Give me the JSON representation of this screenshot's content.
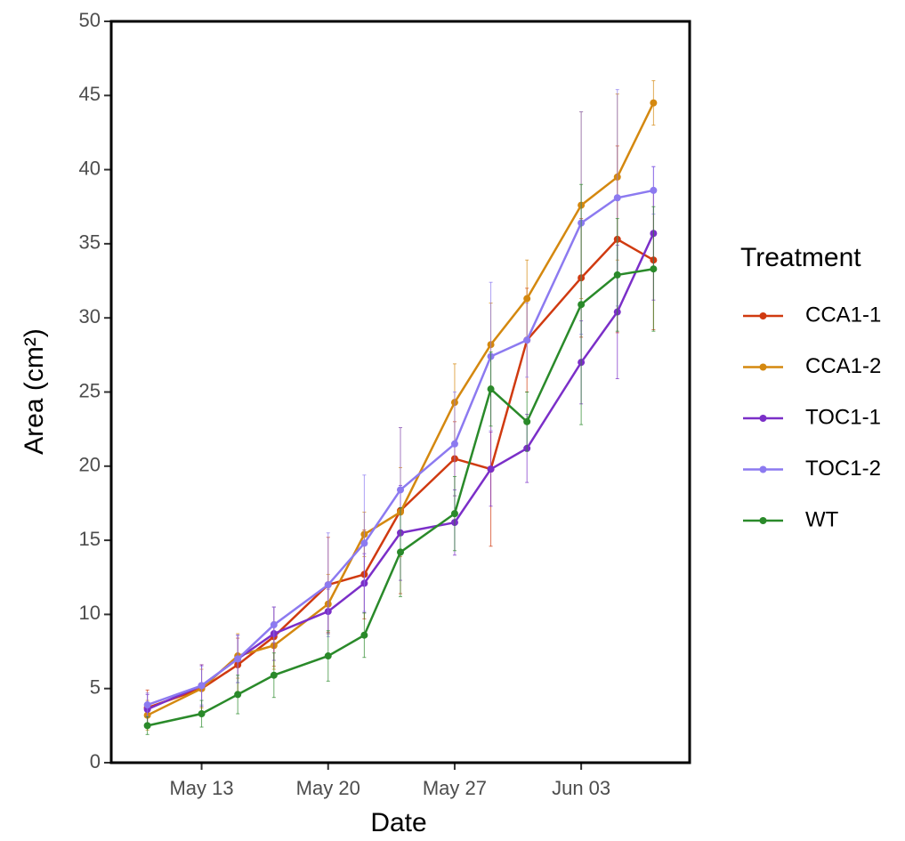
{
  "chart_data": {
    "type": "line",
    "x_label": "Date",
    "y_label": "Area (cm²)",
    "legend_title": "Treatment",
    "legend_position": "right",
    "x": [
      "05-10",
      "05-13",
      "05-15",
      "05-17",
      "05-20",
      "05-22",
      "05-24",
      "05-27",
      "05-29",
      "05-31",
      "06-03",
      "06-05",
      "06-07"
    ],
    "xlim": [
      "05-08",
      "06-09"
    ],
    "xticks": [
      {
        "value": "05-13",
        "label": "May 13"
      },
      {
        "value": "05-20",
        "label": "May 20"
      },
      {
        "value": "05-27",
        "label": "May 27"
      },
      {
        "value": "06-03",
        "label": "Jun 03"
      }
    ],
    "ylim": [
      0,
      50
    ],
    "yticks": [
      0,
      5,
      10,
      15,
      20,
      25,
      30,
      35,
      40,
      45,
      50
    ],
    "series": [
      {
        "name": "CCA1-1",
        "color": "#d03a10",
        "values": [
          3.7,
          5.0,
          6.6,
          8.5,
          12.0,
          12.7,
          17.0,
          20.5,
          19.8,
          28.5,
          32.7,
          35.3,
          33.9
        ],
        "errors": [
          1.2,
          1.6,
          1.8,
          2.0,
          3.2,
          3.0,
          5.6,
          2.5,
          5.2,
          3.5,
          4.0,
          6.3,
          4.7
        ]
      },
      {
        "name": "CCA1-2",
        "color": "#d4880f",
        "values": [
          3.2,
          5.0,
          7.2,
          7.9,
          10.7,
          15.4,
          16.9,
          24.3,
          28.2,
          31.3,
          37.6,
          39.5,
          44.5
        ],
        "errors": [
          1.0,
          1.3,
          1.5,
          1.6,
          2.0,
          1.5,
          3.0,
          2.6,
          2.8,
          2.6,
          6.3,
          5.6,
          1.5
        ]
      },
      {
        "name": "TOC1-1",
        "color": "#7b2fc8",
        "values": [
          3.6,
          5.2,
          7.0,
          8.7,
          10.2,
          12.1,
          15.5,
          16.2,
          19.8,
          21.2,
          27.0,
          30.4,
          35.7
        ],
        "errors": [
          1.0,
          1.4,
          1.6,
          1.8,
          1.5,
          2.0,
          3.2,
          2.2,
          2.5,
          2.3,
          2.8,
          4.5,
          4.5
        ]
      },
      {
        "name": "TOC1-2",
        "color": "#8c7af0",
        "values": [
          3.9,
          5.2,
          7.0,
          9.3,
          12.0,
          14.8,
          18.4,
          21.5,
          27.4,
          28.5,
          36.4,
          38.1,
          38.6
        ],
        "errors": [
          0.8,
          1.3,
          1.6,
          1.2,
          3.5,
          4.6,
          4.2,
          3.5,
          5.0,
          2.5,
          7.5,
          7.3,
          1.6
        ]
      },
      {
        "name": "WT",
        "color": "#2a8a2a",
        "values": [
          2.5,
          3.3,
          4.6,
          5.9,
          7.2,
          8.6,
          14.2,
          16.8,
          25.2,
          23.0,
          30.9,
          32.9,
          33.3
        ],
        "errors": [
          0.6,
          0.9,
          1.3,
          1.5,
          1.7,
          1.5,
          3.0,
          2.5,
          2.5,
          2.0,
          8.1,
          3.8,
          4.2
        ]
      }
    ]
  }
}
